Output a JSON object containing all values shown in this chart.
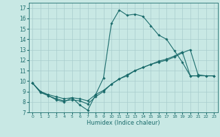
{
  "xlabel": "Humidex (Indice chaleur)",
  "xlim": [
    -0.5,
    23.5
  ],
  "ylim": [
    7,
    17.5
  ],
  "yticks": [
    7,
    8,
    9,
    10,
    11,
    12,
    13,
    14,
    15,
    16,
    17
  ],
  "xticks": [
    0,
    1,
    2,
    3,
    4,
    5,
    6,
    7,
    8,
    9,
    10,
    11,
    12,
    13,
    14,
    15,
    16,
    17,
    18,
    19,
    20,
    21,
    22,
    23
  ],
  "background_color": "#c8e8e4",
  "line_color": "#1a6b6b",
  "grid_color": "#a8cccc",
  "lines": [
    {
      "x": [
        0,
        1,
        2,
        3,
        4,
        5,
        6,
        7,
        8,
        9,
        10,
        11,
        12,
        13,
        14,
        15,
        16,
        17,
        18,
        19,
        20,
        21
      ],
      "y": [
        9.8,
        8.9,
        8.6,
        8.2,
        8.0,
        8.4,
        7.7,
        7.2,
        8.7,
        10.3,
        15.5,
        16.8,
        16.3,
        16.4,
        16.2,
        15.3,
        14.4,
        14.0,
        12.9,
        11.8,
        10.5,
        10.5
      ]
    },
    {
      "x": [
        0,
        1,
        2,
        3,
        4,
        5,
        6,
        7,
        8,
        9,
        10,
        11,
        12,
        13,
        14,
        15,
        16,
        17,
        18,
        19,
        20,
        21,
        22,
        23
      ],
      "y": [
        9.8,
        9.0,
        8.6,
        8.3,
        8.1,
        8.2,
        8.1,
        7.8,
        8.5,
        9.0,
        9.7,
        10.2,
        10.6,
        11.0,
        11.3,
        11.6,
        11.8,
        12.0,
        12.3,
        12.7,
        13.0,
        10.6,
        10.5,
        10.5
      ]
    },
    {
      "x": [
        0,
        1,
        2,
        3,
        4,
        5,
        6,
        7,
        8,
        9,
        10,
        11,
        12,
        13,
        14,
        15,
        16,
        17,
        18,
        19,
        20,
        21,
        22,
        23
      ],
      "y": [
        9.8,
        9.0,
        8.7,
        8.5,
        8.3,
        8.4,
        8.3,
        8.1,
        8.7,
        9.1,
        9.7,
        10.2,
        10.5,
        11.0,
        11.3,
        11.6,
        11.9,
        12.1,
        12.4,
        12.8,
        10.5,
        10.5,
        10.5,
        10.5
      ]
    }
  ]
}
